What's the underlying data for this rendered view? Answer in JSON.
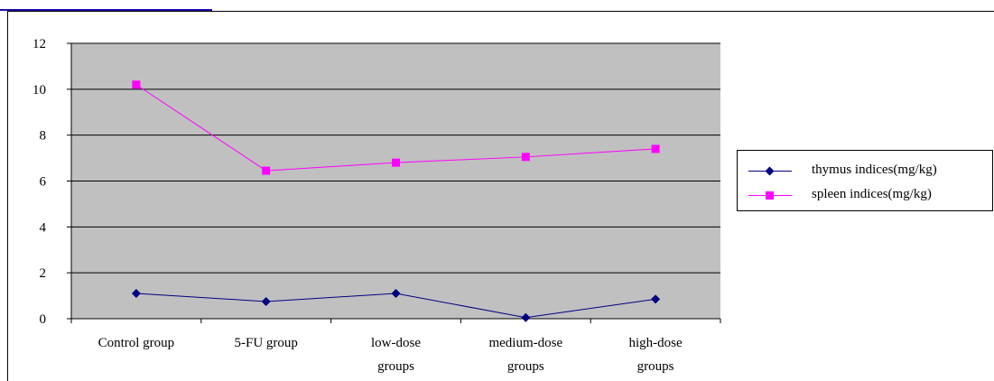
{
  "colors": {
    "plot_background": "#c0c0c0",
    "gridline": "#000000",
    "link_underline": "#1a0dab"
  },
  "chart_data": {
    "type": "line",
    "title": "",
    "xlabel": "",
    "ylabel": "",
    "ylim": [
      0,
      12
    ],
    "yticks": [
      "0",
      "2",
      "4",
      "6",
      "8",
      "10",
      "12"
    ],
    "grid": true,
    "legend_position": "right",
    "categories": [
      [
        "Control group"
      ],
      [
        "5-FU group"
      ],
      [
        "low-dose",
        "groups"
      ],
      [
        "medium-dose",
        "groups"
      ],
      [
        "high-dose",
        "groups"
      ]
    ],
    "series": [
      {
        "name": "thymus indices(mg/kg)",
        "color": "#000080",
        "marker": "diamond",
        "values": [
          1.1,
          0.75,
          1.1,
          0.05,
          0.85
        ]
      },
      {
        "name": "spleen indices(mg/kg)",
        "color": "#ff00ff",
        "marker": "square",
        "values": [
          10.2,
          6.45,
          6.8,
          7.05,
          7.4
        ]
      }
    ]
  }
}
